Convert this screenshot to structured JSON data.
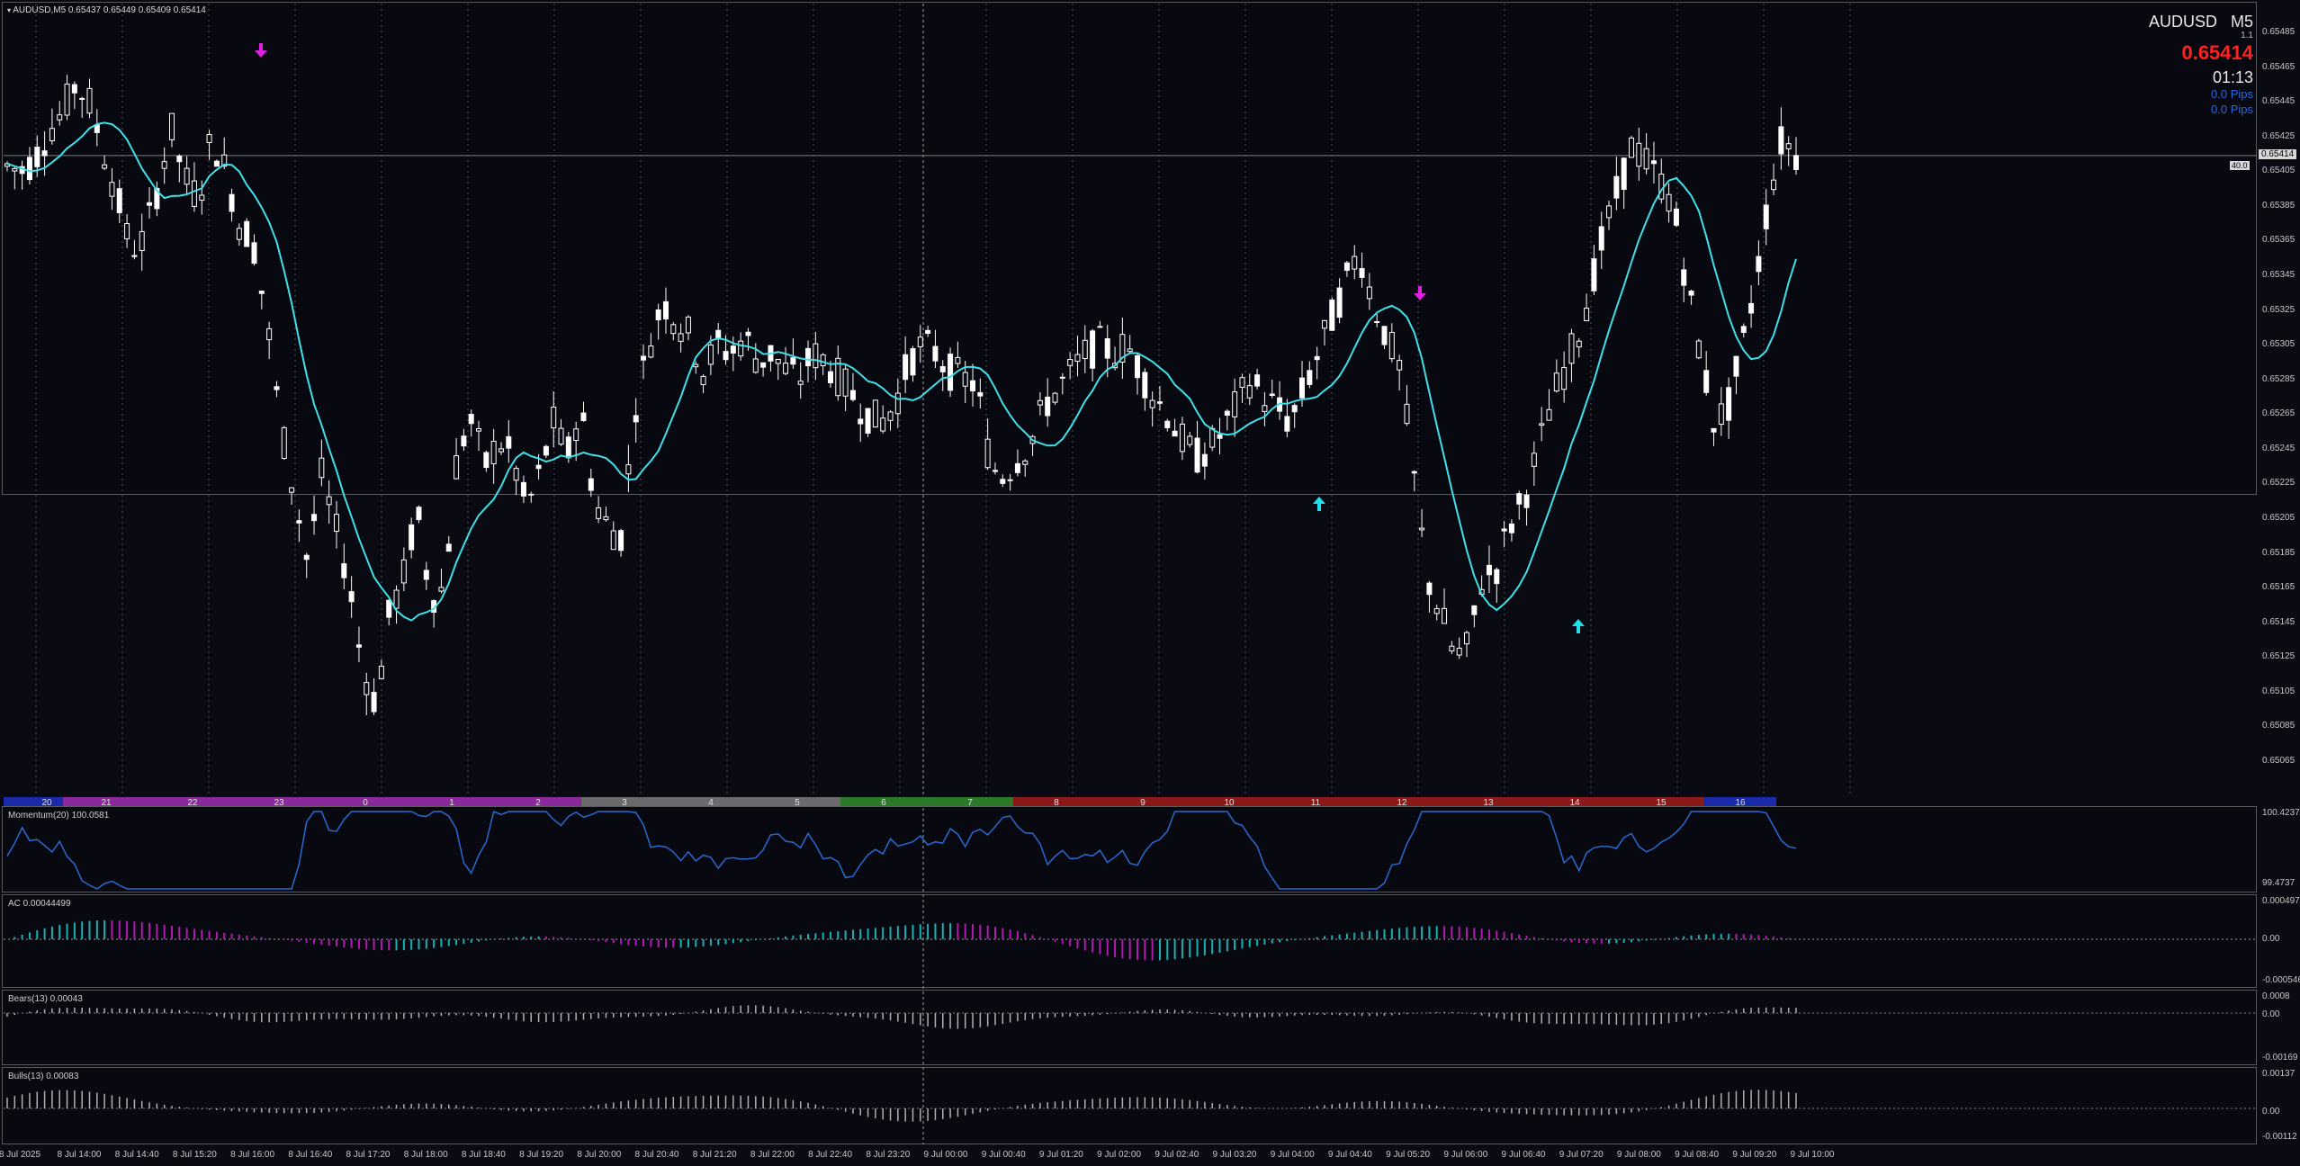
{
  "symbol_line": "AUDUSD,M5  0.65437 0.65449 0.65409 0.65414",
  "info": {
    "symbol": "AUDUSD",
    "timeframe": "M5",
    "spread": "1.1",
    "price": "0.65414",
    "countdown": "01:13",
    "pips1": "0.0 Pips",
    "pips2": "0.0 Pips"
  },
  "price_axis": [
    "0.65485",
    "0.65465",
    "0.65445",
    "0.65425",
    "0.65405",
    "0.65385",
    "0.65365",
    "0.65345",
    "0.65325",
    "0.65305",
    "0.65285",
    "0.65265",
    "0.65245",
    "0.65225",
    "0.65205",
    "0.65185",
    "0.65165",
    "0.65145",
    "0.65125",
    "0.65105",
    "0.65085",
    "0.65065"
  ],
  "current_price_tag": "0.65414",
  "spread_tag": "40.0",
  "hour_strip": [
    {
      "label": "20",
      "color": "#1a2aa8"
    },
    {
      "label": "21",
      "color": "#8a2a9a"
    },
    {
      "label": "22",
      "color": "#8a2a9a"
    },
    {
      "label": "23",
      "color": "#8a2a9a"
    },
    {
      "label": "0",
      "color": "#8a2a9a"
    },
    {
      "label": "1",
      "color": "#8a2a9a"
    },
    {
      "label": "2",
      "color": "#8a2a9a"
    },
    {
      "label": "3",
      "color": "#6a6a6a"
    },
    {
      "label": "4",
      "color": "#6a6a6a"
    },
    {
      "label": "5",
      "color": "#6a6a6a"
    },
    {
      "label": "6",
      "color": "#2a7a2a"
    },
    {
      "label": "7",
      "color": "#2a7a2a"
    },
    {
      "label": "8",
      "color": "#8a1a1a"
    },
    {
      "label": "9",
      "color": "#8a1a1a"
    },
    {
      "label": "10",
      "color": "#8a1a1a"
    },
    {
      "label": "11",
      "color": "#8a1a1a"
    },
    {
      "label": "12",
      "color": "#8a1a1a"
    },
    {
      "label": "13",
      "color": "#8a1a1a"
    },
    {
      "label": "14",
      "color": "#8a1a1a"
    },
    {
      "label": "15",
      "color": "#8a1a1a"
    },
    {
      "label": "16",
      "color": "#1a2aa8"
    }
  ],
  "indicators": {
    "momentum": {
      "label": "Momentum(20) 100.0581",
      "ymax": "100.4237",
      "ymin": "99.4737",
      "color": "#2a6ad0"
    },
    "ac": {
      "label": "AC 0.00044499",
      "ymax": "0.0004974",
      "yzero": "0.00",
      "ymin": "-0.000546",
      "up_color": "#1ab0b0",
      "down_color": "#b01ab0"
    },
    "bears": {
      "label": "Bears(13) 0.00043",
      "ymax": "0.0008",
      "yzero": "0.00",
      "ymin": "-0.00169",
      "color": "#b0b0b0"
    },
    "bulls": {
      "label": "Bulls(13) 0.00083",
      "ymax": "0.00137",
      "yzero": "0.00",
      "ymin": "-0.00112",
      "color": "#b0b0b0"
    }
  },
  "time_axis": [
    "8 Jul 2025",
    "8 Jul 14:00",
    "8 Jul 14:40",
    "8 Jul 15:20",
    "8 Jul 16:00",
    "8 Jul 16:40",
    "8 Jul 17:20",
    "8 Jul 18:00",
    "8 Jul 18:40",
    "8 Jul 19:20",
    "8 Jul 20:00",
    "8 Jul 20:40",
    "8 Jul 21:20",
    "8 Jul 22:00",
    "8 Jul 22:40",
    "8 Jul 23:20",
    "9 Jul 00:00",
    "9 Jul 00:40",
    "9 Jul 01:20",
    "9 Jul 02:00",
    "9 Jul 02:40",
    "9 Jul 03:20",
    "9 Jul 04:00",
    "9 Jul 04:40",
    "9 Jul 05:20",
    "9 Jul 06:00",
    "9 Jul 06:40",
    "9 Jul 07:20",
    "9 Jul 08:00",
    "9 Jul 08:40",
    "9 Jul 09:20",
    "9 Jul 10:00"
  ],
  "colors": {
    "candle": "#ffffff",
    "ma": "#40e0e8",
    "arrow_down": "#e020e0",
    "arrow_up": "#20e0f0",
    "price_red": "#ff2020",
    "pips_blue": "#2a6ae0"
  },
  "price_path": [
    0.65408,
    0.65405,
    0.65412,
    0.65428,
    0.65438,
    0.65455,
    0.65445,
    0.65418,
    0.65392,
    0.6536,
    0.65365,
    0.65395,
    0.6543,
    0.654,
    0.6539,
    0.65425,
    0.65405,
    0.65375,
    0.65365,
    0.6532,
    0.6526,
    0.6522,
    0.6518,
    0.6523,
    0.652,
    0.6517,
    0.6512,
    0.65098,
    0.6515,
    0.6517,
    0.6521,
    0.6516,
    0.65165,
    0.65245,
    0.6526,
    0.65235,
    0.6525,
    0.6524,
    0.6521,
    0.6523,
    0.6526,
    0.6524,
    0.6527,
    0.65215,
    0.652,
    0.65195,
    0.6527,
    0.65305,
    0.6533,
    0.6532,
    0.6531,
    0.6529,
    0.65305,
    0.653,
    0.6531,
    0.65295,
    0.653,
    0.6529,
    0.65285,
    0.653,
    0.65295,
    0.65285,
    0.65275,
    0.65265,
    0.6526,
    0.6527,
    0.65295,
    0.65305,
    0.653,
    0.6529,
    0.65285,
    0.65282,
    0.65235,
    0.6523,
    0.6524,
    0.6525,
    0.6527,
    0.6528,
    0.6529,
    0.653,
    0.65305,
    0.653,
    0.65305,
    0.6529,
    0.65275,
    0.65265,
    0.6525,
    0.6524,
    0.65245,
    0.65255,
    0.6527,
    0.65285,
    0.65275,
    0.65268,
    0.6526,
    0.6528,
    0.653,
    0.6532,
    0.6534,
    0.6536,
    0.6533,
    0.6531,
    0.6529,
    0.6523,
    0.6517,
    0.6515,
    0.65125,
    0.6513,
    0.6517,
    0.65175,
    0.652,
    0.65215,
    0.6524,
    0.6527,
    0.6529,
    0.6531,
    0.6534,
    0.6537,
    0.65395,
    0.6542,
    0.6541,
    0.654,
    0.65385,
    0.6534,
    0.653,
    0.6526,
    0.65268,
    0.653,
    0.6534,
    0.6539,
    0.65425,
    0.65414
  ]
}
